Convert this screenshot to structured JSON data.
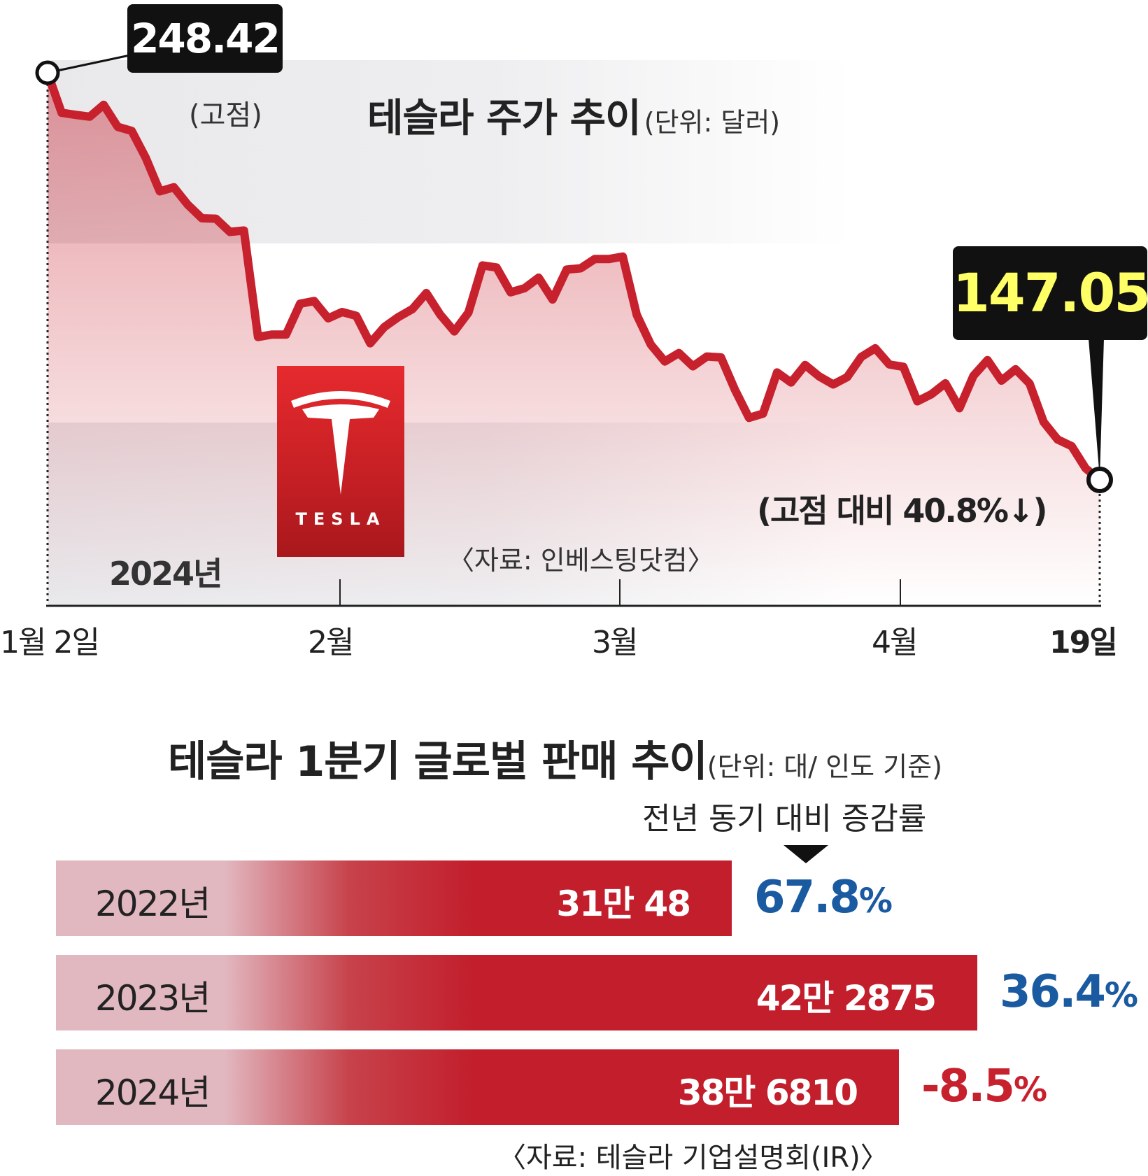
{
  "chart_data": [
    {
      "type": "line",
      "title": "테슬라 주가 추이",
      "unit": "(단위: 달러)",
      "year_label": "2024년",
      "x_tick_labels": [
        "1월 2일",
        "2월",
        "3월",
        "4월",
        "19일"
      ],
      "x": [
        "1/2",
        "1/3",
        "1/4",
        "1/5",
        "1/8",
        "1/9",
        "1/10",
        "1/11",
        "1/12",
        "1/16",
        "1/17",
        "1/18",
        "1/19",
        "1/22",
        "1/23",
        "1/24",
        "1/25",
        "1/26",
        "1/29",
        "1/30",
        "1/31",
        "2/1",
        "2/2",
        "2/5",
        "2/6",
        "2/7",
        "2/8",
        "2/9",
        "2/12",
        "2/13",
        "2/14",
        "2/15",
        "2/16",
        "2/20",
        "2/21",
        "2/22",
        "2/23",
        "2/26",
        "2/27",
        "2/28",
        "2/29",
        "3/1",
        "3/4",
        "3/5",
        "3/6",
        "3/7",
        "3/8",
        "3/11",
        "3/12",
        "3/13",
        "3/14",
        "3/15",
        "3/18",
        "3/19",
        "3/20",
        "3/21",
        "3/22",
        "3/25",
        "3/26",
        "3/27",
        "3/28",
        "4/1",
        "4/2",
        "4/3",
        "4/4",
        "4/5",
        "4/8",
        "4/9",
        "4/10",
        "4/11",
        "4/12",
        "4/15",
        "4/16",
        "4/17",
        "4/18",
        "4/19"
      ],
      "values": [
        248.42,
        238.45,
        237.93,
        237.49,
        240.45,
        234.96,
        233.94,
        227.22,
        218.89,
        219.91,
        215.55,
        212.19,
        212.08,
        208.8,
        209.14,
        182.63,
        183.25,
        183.25,
        190.93,
        191.59,
        187.29,
        188.86,
        187.91,
        181.06,
        185.1,
        187.58,
        189.56,
        193.57,
        188.13,
        184.02,
        188.71,
        200.45,
        199.95,
        193.76,
        194.77,
        197.41,
        191.97,
        199.4,
        199.73,
        202.04,
        202.04,
        202.64,
        188.14,
        180.74,
        176.54,
        178.65,
        175.34,
        177.77,
        177.54,
        169.48,
        162.5,
        163.57,
        173.8,
        171.32,
        175.66,
        172.82,
        170.83,
        172.63,
        177.67,
        179.83,
        175.79,
        175.22,
        166.63,
        168.38,
        171.11,
        164.9,
        172.98,
        176.88,
        171.76,
        174.6,
        171.05,
        161.48,
        157.11,
        155.45,
        149.93,
        147.05
      ],
      "ylim": [
        140,
        255
      ],
      "high": {
        "value": "248.42",
        "label": "(고점)"
      },
      "last": {
        "value": "147.05",
        "change_label": "(고점 대비 40.8%↓)"
      },
      "source": "〈자료: 인베스팅닷컴〉",
      "logo_text": "TESLA",
      "colors": {
        "line": "#c8212e",
        "callout_bg": "#111111",
        "last_value": "#ffff66",
        "band": "#eeeef0"
      }
    },
    {
      "type": "bar",
      "title": "테슬라 1분기 글로벌 판매 추이",
      "unit": "(단위: 대/ 인도 기준)",
      "yoy_header": "전년 동기 대비 증감률",
      "categories": [
        "2022년",
        "2023년",
        "2024년"
      ],
      "values": [
        310048,
        422875,
        386810
      ],
      "value_labels": [
        "31만 48",
        "42만 2875",
        "38만 6810"
      ],
      "yoy": [
        {
          "num": "67.8",
          "sym": "%",
          "color": "#1a5aa0"
        },
        {
          "num": "36.4",
          "sym": "%",
          "color": "#1a5aa0"
        },
        {
          "num": "-8.5",
          "sym": "%",
          "color": "#c8212e"
        }
      ],
      "source": "〈자료: 테슬라 기업설명회(IR)〉"
    }
  ]
}
